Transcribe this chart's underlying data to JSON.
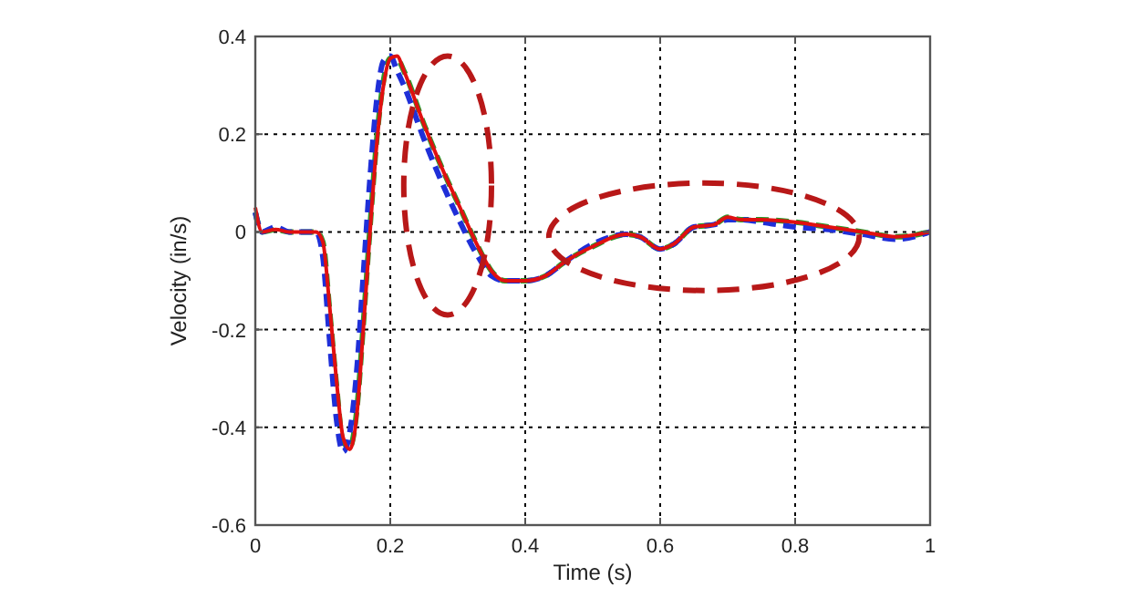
{
  "chart_data": {
    "type": "line",
    "xlabel": "Time (s)",
    "ylabel": "Velocity (in/s)",
    "xlim": [
      0,
      1
    ],
    "xticks": [
      0,
      0.2,
      0.4,
      0.6,
      0.8,
      1
    ],
    "ylim": [
      -0.6,
      0.4
    ],
    "yticks": [
      -0.6,
      -0.4,
      -0.2,
      0,
      0.2,
      0.4
    ],
    "grid": true,
    "series": [
      {
        "color": "#2a9a2a",
        "line_style": "dashed",
        "x": [
          0,
          0.01,
          0.03,
          0.05,
          0.09,
          0.1,
          0.11,
          0.12,
          0.13,
          0.14,
          0.15,
          0.16,
          0.17,
          0.18,
          0.19,
          0.2,
          0.21,
          0.22,
          0.25,
          0.28,
          0.3,
          0.33,
          0.35,
          0.37,
          0.4,
          0.43,
          0.46,
          0.5,
          0.55,
          0.57,
          0.6,
          0.62,
          0.65,
          0.68,
          0.7,
          0.72,
          0.75,
          0.8,
          0.85,
          0.9,
          0.95,
          1
        ],
        "values": [
          0.04,
          0.0,
          0.005,
          0.0,
          0.0,
          -0.02,
          -0.16,
          -0.31,
          -0.43,
          -0.44,
          -0.37,
          -0.19,
          0.01,
          0.19,
          0.31,
          0.355,
          0.355,
          0.33,
          0.22,
          0.12,
          0.06,
          -0.03,
          -0.08,
          -0.1,
          -0.1,
          -0.09,
          -0.06,
          -0.03,
          -0.005,
          -0.01,
          -0.035,
          -0.025,
          0.01,
          0.015,
          0.03,
          0.025,
          0.025,
          0.02,
          0.01,
          0.0,
          -0.01,
          0.0
        ]
      },
      {
        "color": "#1f2fd8",
        "line_style": "dashed",
        "x": [
          0,
          0.01,
          0.03,
          0.05,
          0.09,
          0.1,
          0.11,
          0.12,
          0.13,
          0.14,
          0.15,
          0.16,
          0.17,
          0.18,
          0.19,
          0.2,
          0.21,
          0.22,
          0.25,
          0.28,
          0.3,
          0.33,
          0.35,
          0.37,
          0.4,
          0.43,
          0.46,
          0.5,
          0.55,
          0.57,
          0.6,
          0.62,
          0.65,
          0.68,
          0.7,
          0.72,
          0.75,
          0.8,
          0.85,
          0.9,
          0.95,
          1
        ],
        "values": [
          0.04,
          0.0,
          0.01,
          0.0,
          0.0,
          -0.05,
          -0.22,
          -0.38,
          -0.45,
          -0.41,
          -0.29,
          -0.09,
          0.11,
          0.27,
          0.35,
          0.36,
          0.33,
          0.3,
          0.19,
          0.09,
          0.03,
          -0.05,
          -0.09,
          -0.1,
          -0.1,
          -0.09,
          -0.06,
          -0.025,
          -0.005,
          -0.01,
          -0.035,
          -0.025,
          0.01,
          0.015,
          0.025,
          0.025,
          0.02,
          0.01,
          0.005,
          -0.005,
          -0.015,
          0.0
        ]
      },
      {
        "color": "#e01010",
        "line_style": "solid",
        "x": [
          0,
          0.01,
          0.03,
          0.05,
          0.09,
          0.1,
          0.11,
          0.12,
          0.13,
          0.14,
          0.15,
          0.16,
          0.17,
          0.18,
          0.19,
          0.2,
          0.21,
          0.22,
          0.25,
          0.28,
          0.3,
          0.33,
          0.35,
          0.37,
          0.4,
          0.43,
          0.46,
          0.5,
          0.55,
          0.57,
          0.6,
          0.62,
          0.65,
          0.68,
          0.7,
          0.72,
          0.75,
          0.8,
          0.85,
          0.9,
          0.95,
          1
        ],
        "values": [
          0.05,
          0.0,
          0.005,
          0.0,
          0.0,
          -0.02,
          -0.15,
          -0.3,
          -0.42,
          -0.445,
          -0.38,
          -0.2,
          0.0,
          0.18,
          0.3,
          0.355,
          0.36,
          0.33,
          0.22,
          0.12,
          0.06,
          -0.03,
          -0.08,
          -0.1,
          -0.1,
          -0.09,
          -0.06,
          -0.03,
          -0.005,
          -0.01,
          -0.035,
          -0.025,
          0.01,
          0.015,
          0.03,
          0.025,
          0.025,
          0.02,
          0.01,
          0.0,
          -0.01,
          0.0
        ]
      }
    ]
  }
}
